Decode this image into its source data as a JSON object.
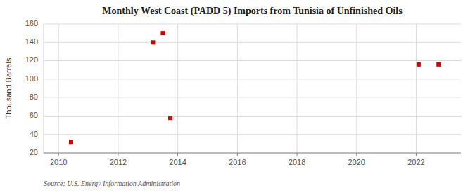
{
  "chart_data": {
    "type": "scatter",
    "title": "Monthly West Coast (PADD 5) Imports from Tunisia of Unfinished Oils",
    "ylabel": "Thousand Barrels",
    "annotation": "Source: U.S. Energy Information Administration",
    "x": [
      2010.42,
      2013.17,
      2013.5,
      2013.75,
      2022.08,
      2022.75
    ],
    "values": [
      32,
      140,
      150,
      58,
      116,
      116
    ],
    "color": "#cc0000",
    "marker": "square",
    "xlim": [
      2009.5,
      2023.5
    ],
    "ylim": [
      20,
      160
    ],
    "xticks": [
      2010,
      2012,
      2014,
      2016,
      2018,
      2020,
      2022
    ],
    "yticks": [
      20,
      40,
      60,
      80,
      100,
      120,
      140,
      160
    ],
    "grid": true
  }
}
